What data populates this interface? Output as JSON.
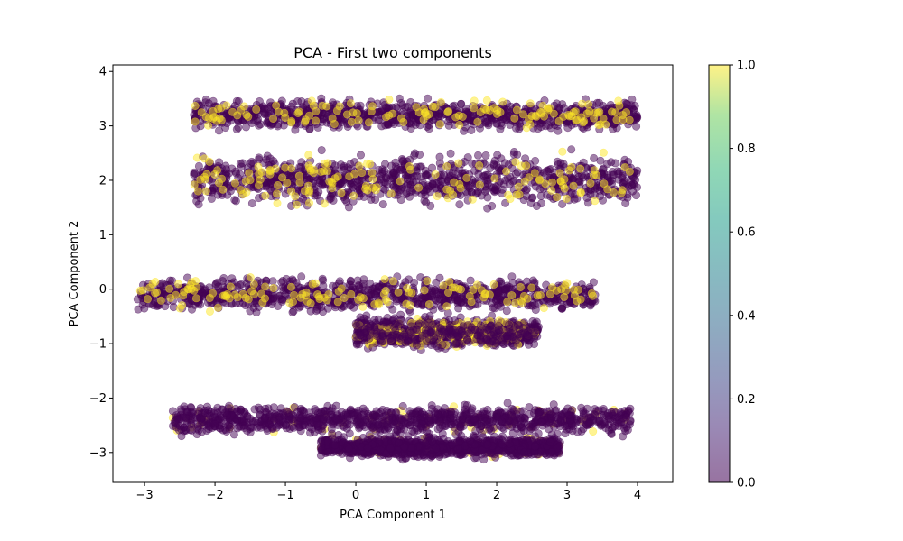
{
  "chart_data": {
    "type": "scatter",
    "title": "PCA - First two components",
    "xlabel": "PCA Component 1",
    "ylabel": "PCA Component 2",
    "xlim": [
      -3.45,
      4.5
    ],
    "ylim": [
      -3.55,
      4.12
    ],
    "xticks": [
      -3,
      -2,
      -1,
      0,
      1,
      2,
      3,
      4
    ],
    "yticks": [
      -3,
      -2,
      -1,
      0,
      1,
      2,
      3,
      4
    ],
    "grid": false,
    "colormap": "viridis",
    "marker_alpha": 0.5,
    "color_low": "#440154",
    "color_high": "#fde725",
    "colorbar": {
      "range": [
        0.0,
        1.0
      ],
      "ticks": [
        "0.0",
        "0.2",
        "0.4",
        "0.6",
        "0.8",
        "1.0"
      ]
    },
    "clusters": [
      {
        "x_range": [
          -2.3,
          4.0
        ],
        "y_center": 3.2,
        "y_spread": 0.35,
        "class1_fraction": 0.12
      },
      {
        "x_range": [
          -2.3,
          4.0
        ],
        "y_center": 2.0,
        "y_spread": 0.6,
        "class1_fraction": 0.14
      },
      {
        "x_range": [
          -3.1,
          3.4
        ],
        "y_center": -0.1,
        "y_spread": 0.4,
        "class1_fraction": 0.12
      },
      {
        "x_range": [
          0.0,
          2.6
        ],
        "y_center": -0.8,
        "y_spread": 0.35,
        "class1_fraction": 0.2
      },
      {
        "x_range": [
          -2.6,
          3.9
        ],
        "y_center": -2.4,
        "y_spread": 0.35,
        "class1_fraction": 0.05
      },
      {
        "x_range": [
          -0.5,
          2.9
        ],
        "y_center": -2.9,
        "y_spread": 0.25,
        "class1_fraction": 0.06
      }
    ]
  }
}
